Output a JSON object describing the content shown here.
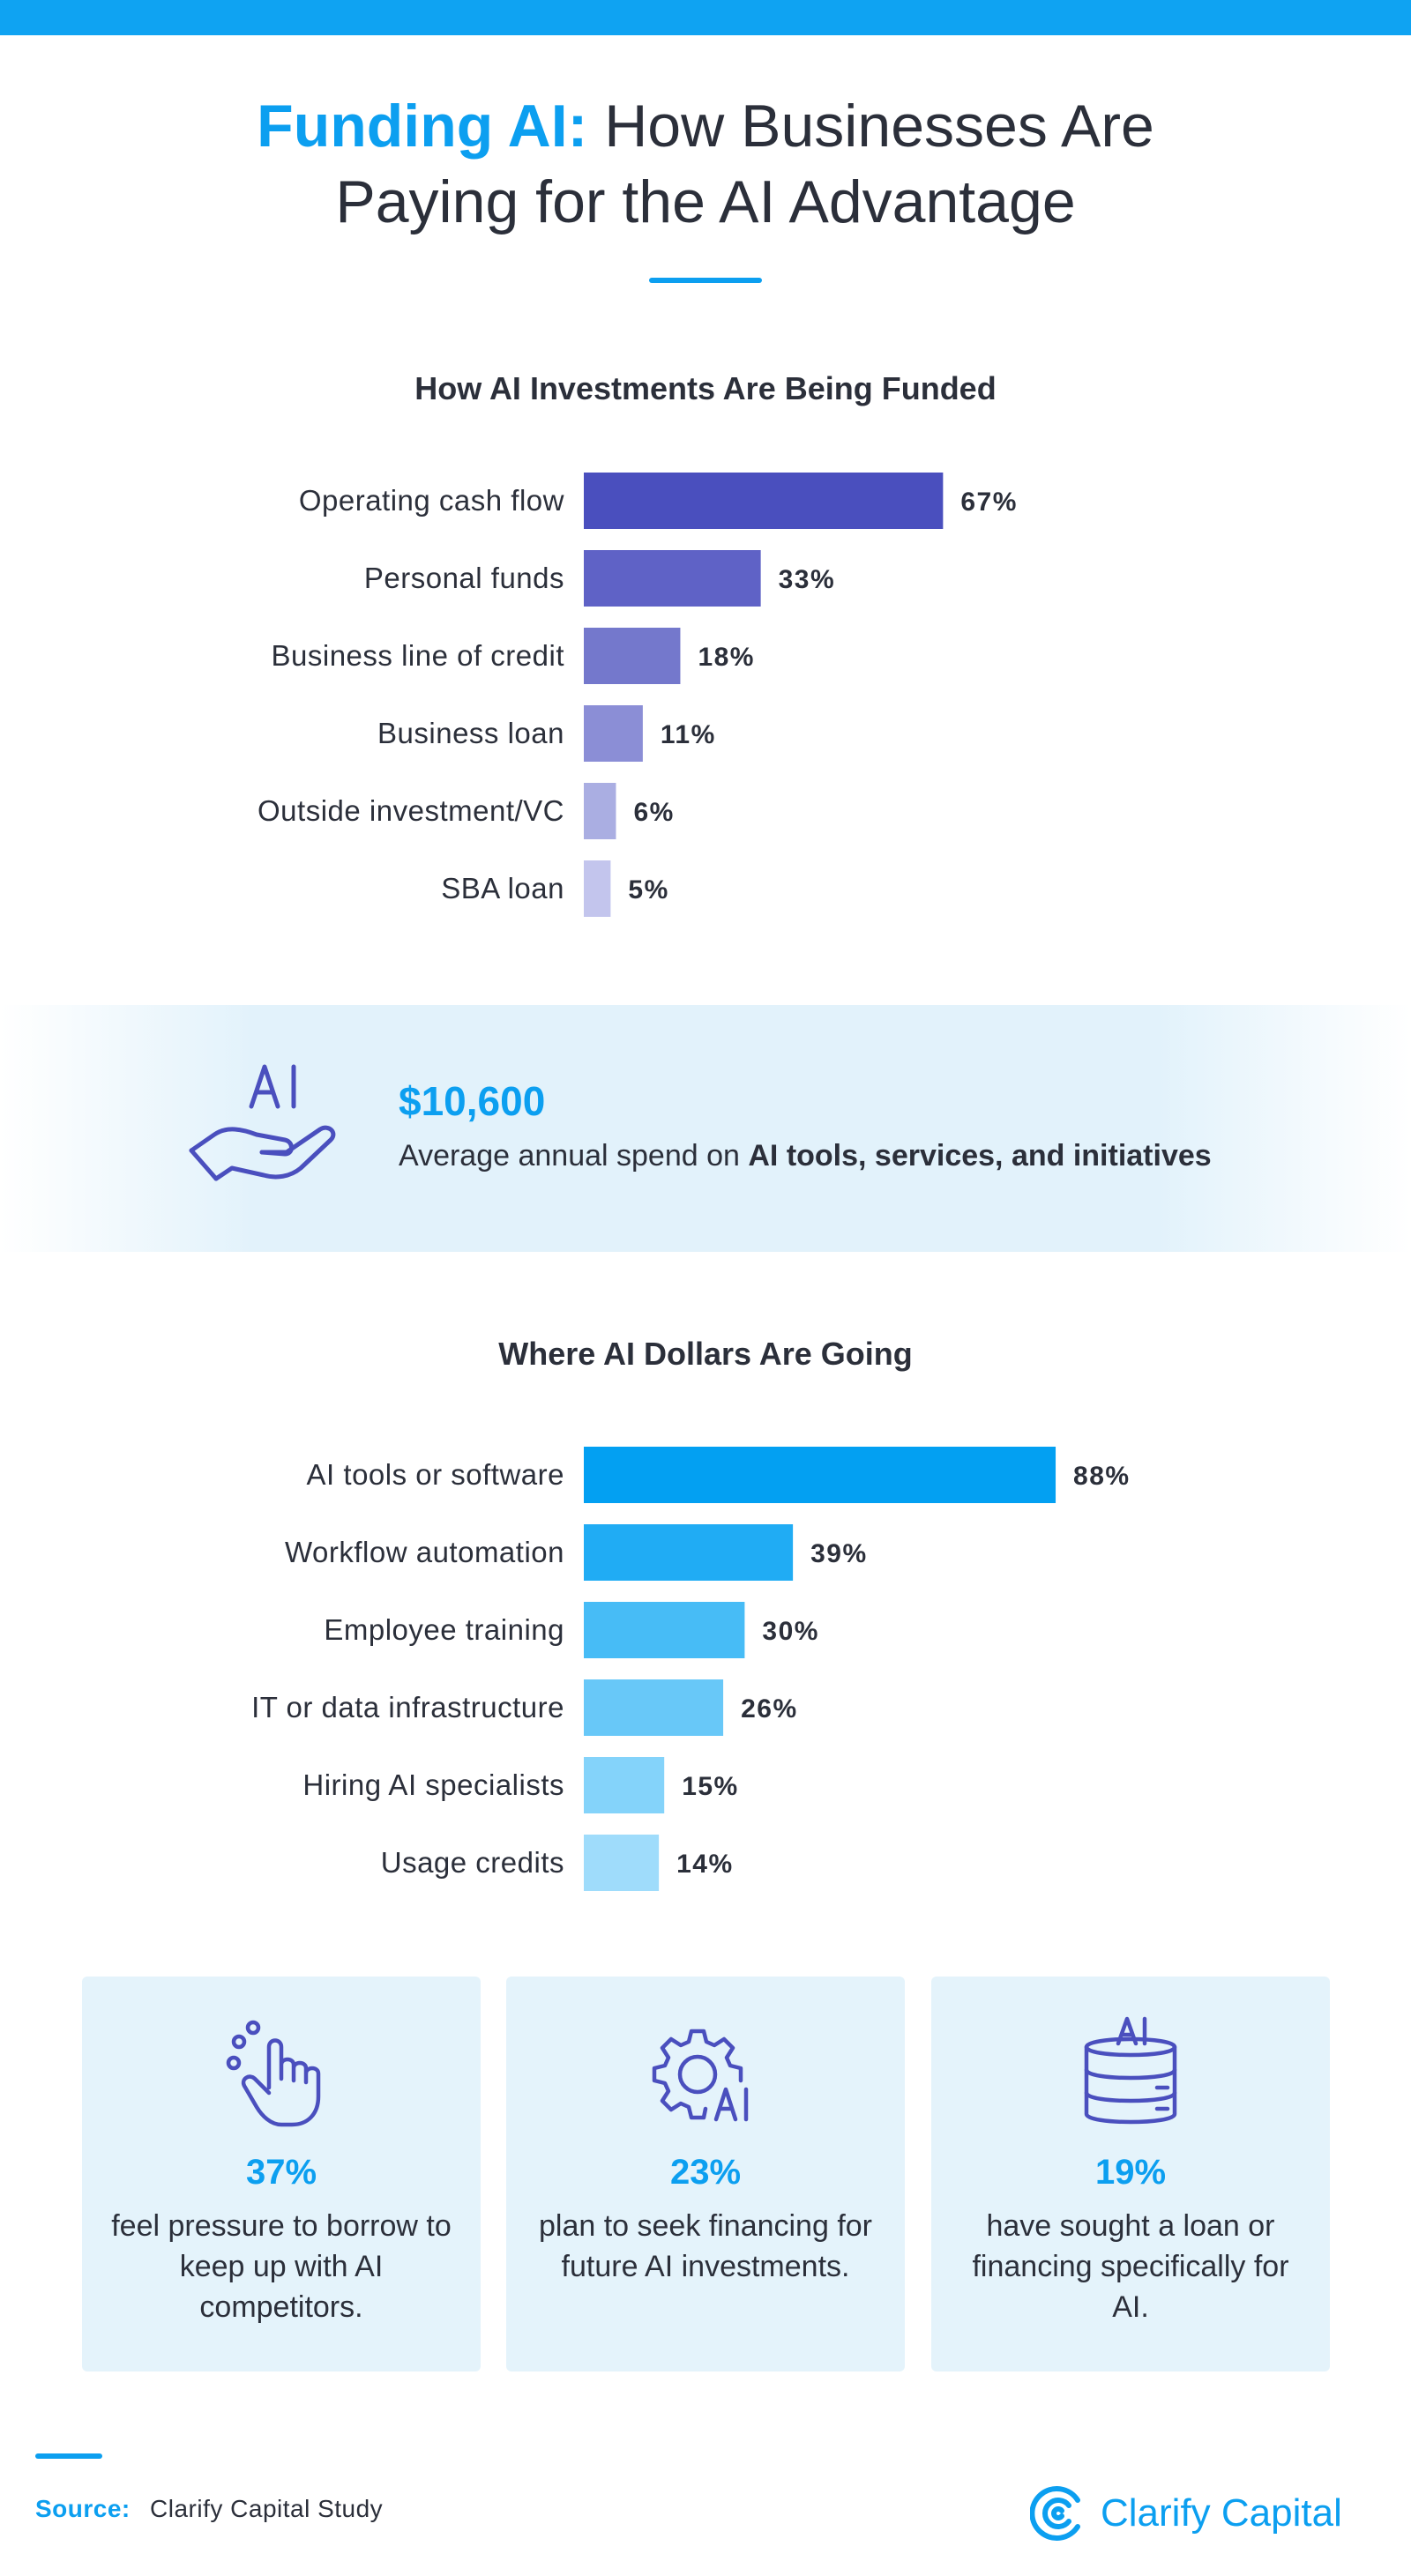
{
  "header": {
    "title_accent": "Funding AI:",
    "title_rest_1": "How Businesses Are",
    "title_line_2": "Paying for the AI Advantage"
  },
  "funding_chart": {
    "title": "How AI Investments Are Being Funded"
  },
  "spend": {
    "amount": "$10,600",
    "text_prefix": "Average annual spend on",
    "text_bold": "AI tools, services, and initiatives",
    "icon": "hand-ai-icon"
  },
  "dollars_chart": {
    "title": "Where AI Dollars Are Going"
  },
  "stats": [
    {
      "value": "37%",
      "text": "feel pressure to borrow to keep up with AI competitors.",
      "icon": "hand-click-icon"
    },
    {
      "value": "23%",
      "text": "plan to seek financing for future AI investments.",
      "icon": "gear-ai-icon"
    },
    {
      "value": "19%",
      "text": "have sought a loan or financing specifically for AI.",
      "icon": "database-ai-icon"
    }
  ],
  "footer": {
    "source_label": "Source:",
    "source_text": "Clarify Capital Study",
    "brand": "Clarify Capital"
  },
  "colors": {
    "accent": "#0c9ff0",
    "funding_bars": [
      "#4a4fbe",
      "#5f62c6",
      "#7478cc",
      "#8b8ed6",
      "#aaaee2",
      "#c3c5ed"
    ],
    "dollars_bars": [
      "#03a0f2",
      "#20acf4",
      "#47bcf6",
      "#68c8f8",
      "#84d3fa",
      "#9fdcfb"
    ],
    "card_bg": "#e4f3fb"
  },
  "chart_data": [
    {
      "type": "bar",
      "orientation": "horizontal",
      "title": "How AI Investments Are Being Funded",
      "categories": [
        "Operating cash flow",
        "Personal funds",
        "Business line of credit",
        "Business loan",
        "Outside investment/VC",
        "SBA loan"
      ],
      "values": [
        67,
        33,
        18,
        11,
        6,
        5
      ],
      "value_labels": [
        "67%",
        "33%",
        "18%",
        "11%",
        "6%",
        "5%"
      ],
      "unit": "%"
    },
    {
      "type": "bar",
      "orientation": "horizontal",
      "title": "Where AI Dollars Are Going",
      "categories": [
        "AI tools or software",
        "Workflow automation",
        "Employee training",
        "IT or data infrastructure",
        "Hiring AI specialists",
        "Usage credits"
      ],
      "values": [
        88,
        39,
        30,
        26,
        15,
        14
      ],
      "value_labels": [
        "88%",
        "39%",
        "30%",
        "26%",
        "15%",
        "14%"
      ],
      "unit": "%"
    }
  ]
}
